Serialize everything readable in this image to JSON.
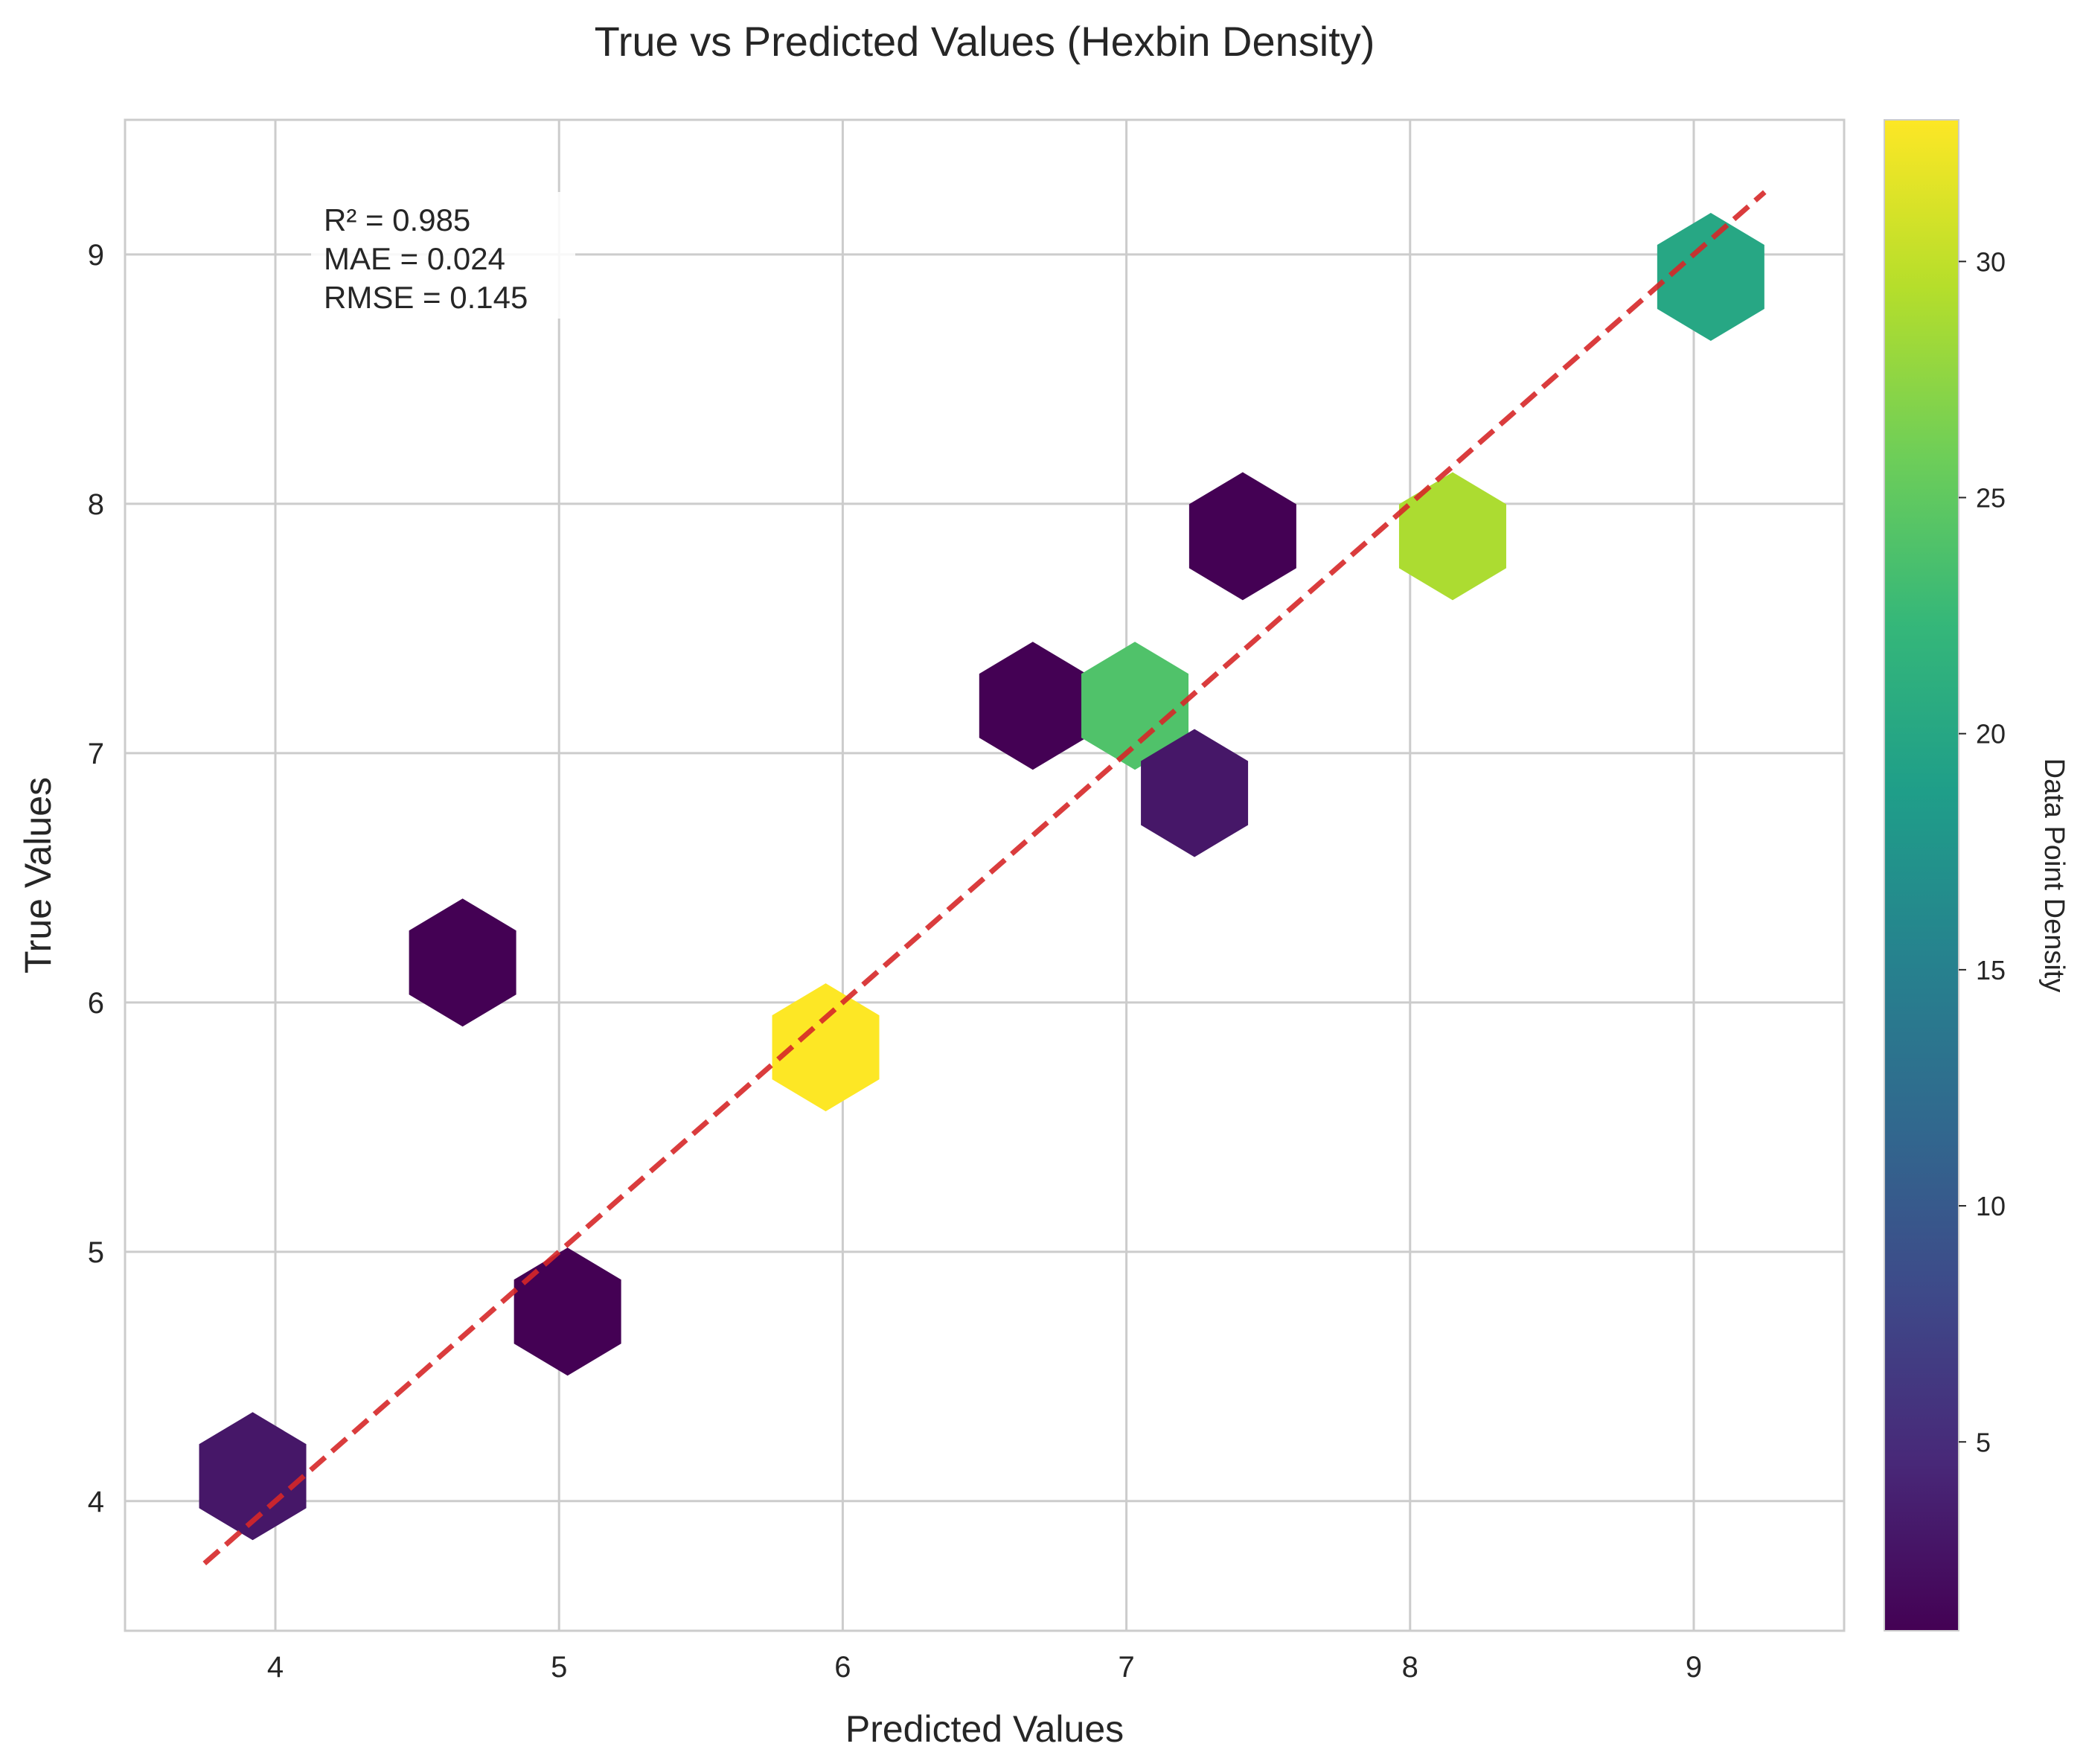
{
  "chart_data": {
    "type": "hexbin",
    "title": "True vs Predicted Values (Hexbin Density)",
    "xlabel": "Predicted Values",
    "ylabel": "True Values",
    "xlim": [
      3.47,
      9.53
    ],
    "ylim": [
      3.48,
      9.54
    ],
    "xticks": [
      4,
      5,
      6,
      7,
      8,
      9
    ],
    "yticks": [
      4,
      5,
      6,
      7,
      8,
      9
    ],
    "grid": true,
    "stats": [
      "R² = 0.985",
      "MAE = 0.024",
      "RMSE = 0.145"
    ],
    "reference_line": {
      "x": [
        3.75,
        9.25
      ],
      "y": [
        3.75,
        9.25
      ],
      "style": "dashed",
      "color": "#d62728"
    },
    "colorbar": {
      "label": "Data Point Density",
      "range": [
        1,
        33
      ],
      "ticks": [
        5,
        10,
        15,
        20,
        25,
        30
      ],
      "colormap": [
        "#440154",
        "#482878",
        "#3e4989",
        "#31688e",
        "#26828e",
        "#1f9e89",
        "#35b779",
        "#6ece58",
        "#b5de2b",
        "#fde725"
      ]
    },
    "hexbins": [
      {
        "x": 3.92,
        "y": 4.1,
        "count": 3
      },
      {
        "x": 4.66,
        "y": 6.16,
        "count": 1
      },
      {
        "x": 5.03,
        "y": 4.76,
        "count": 1
      },
      {
        "x": 5.94,
        "y": 5.82,
        "count": 33
      },
      {
        "x": 6.67,
        "y": 7.19,
        "count": 1
      },
      {
        "x": 7.03,
        "y": 7.19,
        "count": 24
      },
      {
        "x": 7.24,
        "y": 6.84,
        "count": 3
      },
      {
        "x": 7.41,
        "y": 7.87,
        "count": 1
      },
      {
        "x": 8.15,
        "y": 7.87,
        "count": 29
      },
      {
        "x": 9.06,
        "y": 8.91,
        "count": 20
      }
    ]
  }
}
